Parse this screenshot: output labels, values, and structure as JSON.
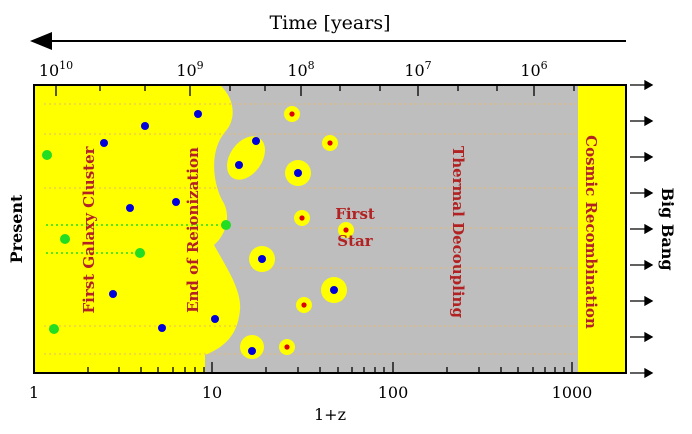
{
  "header": {
    "time_axis_label": "Time [years]",
    "time_ticks": [
      {
        "base": "10",
        "exp": "10"
      },
      {
        "base": "10",
        "exp": "9"
      },
      {
        "base": "10",
        "exp": "8"
      },
      {
        "base": "10",
        "exp": "7"
      },
      {
        "base": "10",
        "exp": "6"
      }
    ]
  },
  "axes": {
    "x_label": "1+z",
    "x_ticks": [
      "1",
      "10",
      "100",
      "1000"
    ],
    "x_scale": "log",
    "x_range": [
      1,
      2000
    ]
  },
  "side_labels": {
    "left": "Present",
    "right": "Big Bang"
  },
  "regions": {
    "first_galaxy_cluster": "First Galaxy Cluster",
    "end_of_reionization": "End of Reionization",
    "first_star_line1": "First",
    "first_star_line2": "Star",
    "thermal_decoupling": "Thermal Decoupling",
    "cosmic_recombination": "Cosmic Recombination"
  },
  "colors": {
    "yellow": "#ffff00",
    "gray": "#bebebe",
    "blue": "#0000dd",
    "green": "#22dd22",
    "red": "#dd0000",
    "label_red": "#b22222",
    "grid": "#e8b86a"
  }
}
